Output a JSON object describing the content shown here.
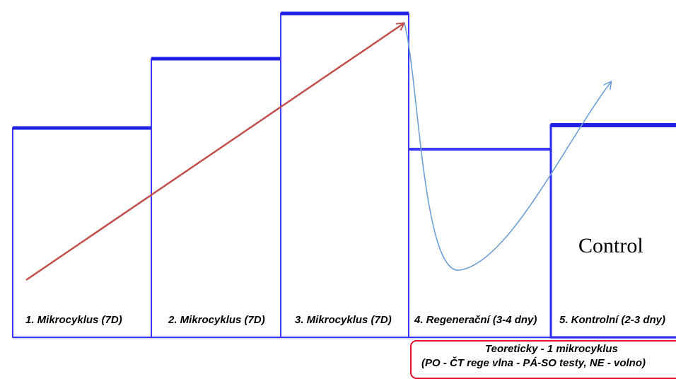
{
  "colors": {
    "box_stroke": "#3b3bff",
    "box_top": "#2323e8",
    "baseline": "#d4d4f4",
    "trend_arrow": "#c0504d",
    "recovery_curve": "#6fa0d6",
    "note_border": "#e0102a"
  },
  "microcycles": [
    {
      "label": "1. Mikrocyklus (7D)",
      "level": 1
    },
    {
      "label": "2. Mikrocyklus (7D)",
      "level": 2
    },
    {
      "label": "3. Mikrocyklus (7D)",
      "level": 3
    },
    {
      "label": "4. Regenerační (3-4 dny)",
      "level": 0.6
    },
    {
      "label": "5. Kontrolní (2-3 dny)",
      "level": 1
    }
  ],
  "control_label": "Control",
  "note": {
    "line1": "Teoreticky - 1 mikrocyklus",
    "line2": "(PO - ČT rege vlna -  PÁ-SO testy, NE - volno)"
  }
}
